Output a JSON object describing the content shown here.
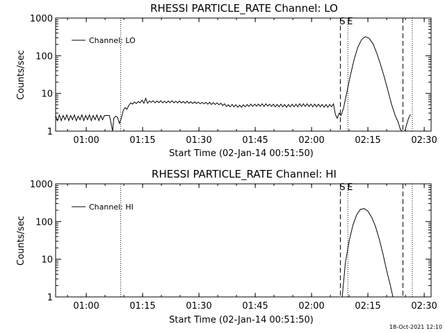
{
  "footer_timestamp": "18-Oct-2021 12:10",
  "chart_data": [
    {
      "type": "line",
      "title": "RHESSI PARTICLE_RATE Channel: LO",
      "xlabel": "Start Time (02-Jan-14 00:51:50)",
      "ylabel": "Counts/sec",
      "yscale": "log",
      "ylim": [
        1,
        1000
      ],
      "xlim": [
        "00:51:50",
        "02:31:50"
      ],
      "x_ticks": [
        {
          "t": "01:00",
          "label": "01:00"
        },
        {
          "t": "01:15",
          "label": "01:15"
        },
        {
          "t": "01:30",
          "label": "01:30"
        },
        {
          "t": "01:45",
          "label": "01:45"
        },
        {
          "t": "02:00",
          "label": "02:00"
        },
        {
          "t": "02:15",
          "label": "02:15"
        },
        {
          "t": "02:30",
          "label": "02:30"
        }
      ],
      "y_ticks": [
        {
          "v": 1,
          "label": "1"
        },
        {
          "v": 10,
          "label": "10"
        },
        {
          "v": 100,
          "label": "100"
        },
        {
          "v": 1000,
          "label": "1000"
        }
      ],
      "markers": [
        {
          "time": "01:09:10",
          "style": "dotted",
          "label": ""
        },
        {
          "time": "02:07:40",
          "style": "dashed",
          "label": "S"
        },
        {
          "time": "02:09:40",
          "style": "dotted",
          "label": "E"
        },
        {
          "time": "02:24:20",
          "style": "dashed",
          "label": ""
        },
        {
          "time": "02:26:50",
          "style": "dotted",
          "label": ""
        }
      ],
      "legend": {
        "entry": "Channel: LO",
        "placement": "top-left"
      },
      "series": [
        {
          "name": "Channel: LO",
          "points": [
            [
              "00:51:50",
              2.6
            ],
            [
              "00:52:20",
              1.9
            ],
            [
              "00:52:50",
              2.7
            ],
            [
              "00:53:20",
              1.9
            ],
            [
              "00:53:50",
              2.6
            ],
            [
              "00:54:20",
              2.0
            ],
            [
              "00:54:50",
              2.7
            ],
            [
              "00:55:20",
              1.9
            ],
            [
              "00:55:50",
              2.6
            ],
            [
              "00:56:20",
              2.0
            ],
            [
              "00:56:50",
              2.7
            ],
            [
              "00:57:20",
              1.9
            ],
            [
              "00:57:50",
              2.5
            ],
            [
              "00:58:20",
              2.0
            ],
            [
              "00:58:50",
              2.7
            ],
            [
              "00:59:20",
              1.9
            ],
            [
              "00:59:50",
              2.6
            ],
            [
              "01:00:20",
              2.0
            ],
            [
              "01:00:50",
              2.7
            ],
            [
              "01:01:20",
              1.9
            ],
            [
              "01:01:50",
              2.6
            ],
            [
              "01:02:20",
              2.0
            ],
            [
              "01:02:50",
              2.7
            ],
            [
              "01:03:20",
              1.9
            ],
            [
              "01:03:50",
              2.6
            ],
            [
              "01:04:20",
              2.0
            ],
            [
              "01:04:50",
              2.6
            ],
            [
              "01:05:20",
              2.6
            ],
            [
              "01:06:10",
              2.6
            ],
            [
              "01:06:40",
              1.5
            ],
            [
              "01:07:00",
              1.0
            ],
            [
              "01:07:20",
              2.2
            ],
            [
              "01:07:50",
              2.5
            ],
            [
              "01:08:20",
              2.3
            ],
            [
              "01:08:50",
              1.6
            ],
            [
              "01:09:20",
              2.2
            ],
            [
              "01:09:50",
              3.5
            ],
            [
              "01:10:20",
              4.2
            ],
            [
              "01:10:50",
              3.8
            ],
            [
              "01:11:20",
              4.8
            ],
            [
              "01:11:50",
              5.6
            ],
            [
              "01:12:20",
              5.2
            ],
            [
              "01:12:50",
              5.9
            ],
            [
              "01:13:20",
              5.4
            ],
            [
              "01:13:50",
              6.1
            ],
            [
              "01:14:20",
              5.6
            ],
            [
              "01:14:50",
              6.6
            ],
            [
              "01:15:20",
              5.5
            ],
            [
              "01:15:50",
              7.4
            ],
            [
              "01:16:20",
              5.5
            ],
            [
              "01:16:50",
              6.3
            ],
            [
              "01:17:20",
              5.8
            ],
            [
              "01:17:50",
              6.4
            ],
            [
              "01:18:20",
              5.6
            ],
            [
              "01:18:50",
              6.3
            ],
            [
              "01:19:20",
              5.7
            ],
            [
              "01:19:50",
              6.4
            ],
            [
              "01:20:20",
              5.6
            ],
            [
              "01:20:50",
              6.2
            ],
            [
              "01:21:20",
              5.6
            ],
            [
              "01:21:50",
              6.3
            ],
            [
              "01:22:20",
              5.7
            ],
            [
              "01:22:50",
              6.4
            ],
            [
              "01:23:20",
              5.6
            ],
            [
              "01:23:50",
              6.2
            ],
            [
              "01:24:20",
              5.6
            ],
            [
              "01:24:50",
              6.3
            ],
            [
              "01:25:20",
              5.6
            ],
            [
              "01:25:50",
              6.1
            ],
            [
              "01:26:20",
              5.5
            ],
            [
              "01:26:50",
              6.2
            ],
            [
              "01:27:20",
              5.5
            ],
            [
              "01:27:50",
              6.0
            ],
            [
              "01:28:20",
              5.4
            ],
            [
              "01:28:50",
              6.0
            ],
            [
              "01:29:20",
              5.4
            ],
            [
              "01:29:50",
              5.9
            ],
            [
              "01:30:20",
              5.3
            ],
            [
              "01:30:50",
              5.8
            ],
            [
              "01:31:20",
              5.3
            ],
            [
              "01:31:50",
              5.8
            ],
            [
              "01:32:20",
              5.2
            ],
            [
              "01:32:50",
              5.8
            ],
            [
              "01:33:20",
              5.1
            ],
            [
              "01:33:50",
              5.7
            ],
            [
              "01:34:20",
              5.1
            ],
            [
              "01:34:50",
              5.6
            ],
            [
              "01:35:20",
              5.0
            ],
            [
              "01:35:50",
              5.5
            ],
            [
              "01:36:20",
              4.8
            ],
            [
              "01:36:50",
              5.3
            ],
            [
              "01:37:20",
              4.5
            ],
            [
              "01:37:50",
              5.0
            ],
            [
              "01:38:20",
              4.4
            ],
            [
              "01:38:50",
              5.1
            ],
            [
              "01:39:20",
              4.4
            ],
            [
              "01:39:50",
              5.0
            ],
            [
              "01:40:20",
              4.3
            ],
            [
              "01:40:50",
              4.9
            ],
            [
              "01:41:20",
              4.3
            ],
            [
              "01:41:50",
              5.0
            ],
            [
              "01:42:20",
              4.4
            ],
            [
              "01:42:50",
              5.1
            ],
            [
              "01:43:20",
              4.5
            ],
            [
              "01:43:50",
              5.2
            ],
            [
              "01:44:20",
              4.5
            ],
            [
              "01:44:50",
              5.2
            ],
            [
              "01:45:20",
              4.6
            ],
            [
              "01:45:50",
              5.2
            ],
            [
              "01:46:20",
              4.6
            ],
            [
              "01:46:50",
              5.3
            ],
            [
              "01:47:20",
              4.5
            ],
            [
              "01:47:50",
              5.3
            ],
            [
              "01:48:20",
              4.6
            ],
            [
              "01:48:50",
              5.2
            ],
            [
              "01:49:20",
              4.5
            ],
            [
              "01:49:50",
              5.2
            ],
            [
              "01:50:20",
              4.4
            ],
            [
              "01:50:50",
              5.1
            ],
            [
              "01:51:20",
              4.4
            ],
            [
              "01:51:50",
              5.2
            ],
            [
              "01:52:20",
              4.4
            ],
            [
              "01:52:50",
              5.1
            ],
            [
              "01:53:20",
              4.3
            ],
            [
              "01:53:50",
              5.1
            ],
            [
              "01:54:20",
              4.4
            ],
            [
              "01:54:50",
              5.2
            ],
            [
              "01:55:20",
              4.4
            ],
            [
              "01:55:50",
              5.2
            ],
            [
              "01:56:20",
              4.4
            ],
            [
              "01:56:50",
              5.3
            ],
            [
              "01:57:20",
              4.5
            ],
            [
              "01:57:50",
              5.3
            ],
            [
              "01:58:20",
              4.5
            ],
            [
              "01:58:50",
              5.3
            ],
            [
              "01:59:20",
              4.5
            ],
            [
              "01:59:50",
              5.2
            ],
            [
              "02:00:20",
              4.4
            ],
            [
              "02:00:50",
              5.2
            ],
            [
              "02:01:20",
              4.4
            ],
            [
              "02:01:50",
              5.2
            ],
            [
              "02:02:20",
              4.4
            ],
            [
              "02:02:50",
              5.1
            ],
            [
              "02:03:20",
              4.3
            ],
            [
              "02:03:50",
              5.1
            ],
            [
              "02:04:20",
              4.3
            ],
            [
              "02:04:50",
              5.1
            ],
            [
              "02:05:20",
              4.4
            ],
            [
              "02:05:50",
              5.3
            ],
            [
              "02:06:20",
              2.8
            ],
            [
              "02:06:50",
              2.2
            ],
            [
              "02:07:20",
              3.0
            ],
            [
              "02:07:50",
              2.6
            ],
            [
              "02:08:30",
              4.0
            ],
            [
              "02:09:20",
              10
            ],
            [
              "02:10:20",
              30
            ],
            [
              "02:11:20",
              80
            ],
            [
              "02:12:20",
              170
            ],
            [
              "02:13:20",
              270
            ],
            [
              "02:14:20",
              320
            ],
            [
              "02:15:20",
              290
            ],
            [
              "02:16:20",
              210
            ],
            [
              "02:17:20",
              120
            ],
            [
              "02:18:20",
              60
            ],
            [
              "02:19:20",
              28
            ],
            [
              "02:20:20",
              12
            ],
            [
              "02:21:20",
              5
            ],
            [
              "02:22:20",
              2.5
            ],
            [
              "02:23:00",
              1.8
            ],
            [
              "02:23:40",
              1.1
            ],
            [
              "02:24:10",
              1.0
            ],
            [
              "02:24:50",
              1.0
            ],
            [
              "02:25:20",
              1.5
            ],
            [
              "02:25:50",
              2.2
            ],
            [
              "02:26:20",
              2.8
            ]
          ]
        }
      ]
    },
    {
      "type": "line",
      "title": "RHESSI PARTICLE_RATE Channel: HI",
      "xlabel": "Start Time (02-Jan-14 00:51:50)",
      "ylabel": "Counts/sec",
      "yscale": "log",
      "ylim": [
        1,
        1000
      ],
      "xlim": [
        "00:51:50",
        "02:31:50"
      ],
      "x_ticks": [
        {
          "t": "01:00",
          "label": "01:00"
        },
        {
          "t": "01:15",
          "label": "01:15"
        },
        {
          "t": "01:30",
          "label": "01:30"
        },
        {
          "t": "01:45",
          "label": "01:45"
        },
        {
          "t": "02:00",
          "label": "02:00"
        },
        {
          "t": "02:15",
          "label": "02:15"
        },
        {
          "t": "02:30",
          "label": "02:30"
        }
      ],
      "y_ticks": [
        {
          "v": 1,
          "label": "1"
        },
        {
          "v": 10,
          "label": "10"
        },
        {
          "v": 100,
          "label": "100"
        },
        {
          "v": 1000,
          "label": "1000"
        }
      ],
      "markers": [
        {
          "time": "01:09:10",
          "style": "dotted",
          "label": ""
        },
        {
          "time": "02:07:40",
          "style": "dashed",
          "label": "S"
        },
        {
          "time": "02:09:40",
          "style": "dotted",
          "label": "E"
        },
        {
          "time": "02:24:20",
          "style": "dashed",
          "label": ""
        },
        {
          "time": "02:26:50",
          "style": "dotted",
          "label": ""
        }
      ],
      "legend": {
        "entry": "Channel: HI",
        "placement": "top-left"
      },
      "series": [
        {
          "name": "Channel: HI",
          "points": [
            [
              "02:08:10",
              1.0
            ],
            [
              "02:09:00",
              8
            ],
            [
              "02:10:00",
              30
            ],
            [
              "02:11:00",
              80
            ],
            [
              "02:12:00",
              150
            ],
            [
              "02:13:00",
              210
            ],
            [
              "02:14:00",
              220
            ],
            [
              "02:15:00",
              190
            ],
            [
              "02:16:00",
              130
            ],
            [
              "02:17:00",
              75
            ],
            [
              "02:18:00",
              35
            ],
            [
              "02:19:00",
              14
            ],
            [
              "02:20:00",
              5
            ],
            [
              "02:21:00",
              2.0
            ],
            [
              "02:21:40",
              1.0
            ]
          ]
        }
      ]
    }
  ]
}
